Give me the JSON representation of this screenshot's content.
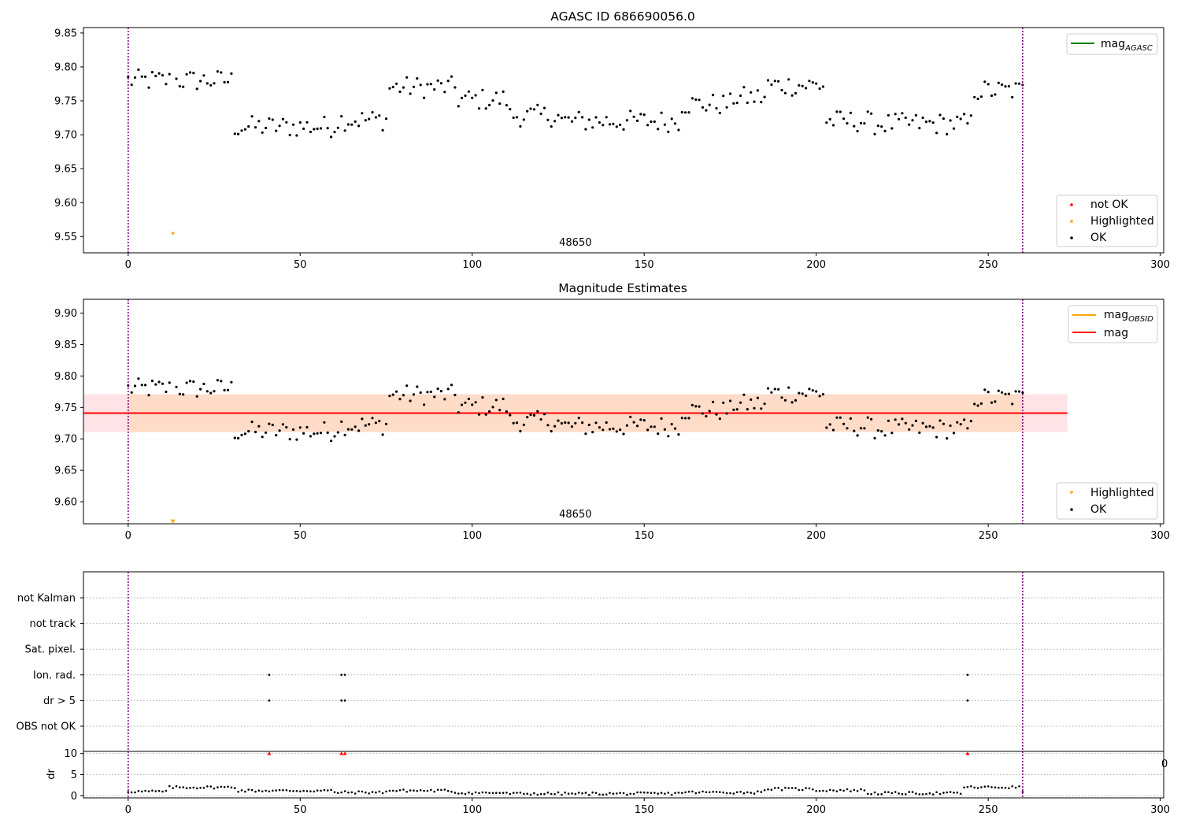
{
  "chart_data": [
    {
      "type": "scatter",
      "title": "AGASC ID 686690056.0",
      "xlim": [
        -13,
        301
      ],
      "ylim": [
        9.526,
        9.858
      ],
      "xticks": [
        0,
        50,
        100,
        150,
        200,
        250,
        300
      ],
      "yticks": [
        9.55,
        9.6,
        9.65,
        9.7,
        9.75,
        9.8,
        9.85
      ],
      "vlines": [
        0,
        260
      ],
      "annotation": {
        "x": 130,
        "text": "48650"
      },
      "series": [
        {
          "name": "not OK",
          "color": "#ff0000",
          "points": []
        },
        {
          "name": "Highlighted",
          "color": "#ffa500",
          "points": [
            [
              13,
              9.555
            ]
          ]
        },
        {
          "name": "OK",
          "color": "#000000",
          "points": "ok_points"
        }
      ],
      "lines": [
        {
          "name": "mag",
          "sub": "AGASC",
          "color": "#008000"
        }
      ],
      "legend_top": "top-right",
      "legend_bottom": "bottom-right"
    },
    {
      "type": "scatter",
      "title": "Magnitude Estimates",
      "xlim": [
        -13,
        301
      ],
      "ylim": [
        9.565,
        9.922
      ],
      "xticks": [
        0,
        50,
        100,
        150,
        200,
        250,
        300
      ],
      "yticks": [
        9.6,
        9.65,
        9.7,
        9.75,
        9.8,
        9.85,
        9.9
      ],
      "vlines": [
        0,
        260
      ],
      "annotation": {
        "x": 130,
        "text": "48650"
      },
      "mean_mag": 9.741,
      "band_inner": {
        "x0": 0,
        "x1": 260,
        "y0": 9.711,
        "y1": 9.771,
        "color": "#ffdcc8"
      },
      "band_outer": {
        "x0": -13,
        "x1": 273,
        "y0": 9.711,
        "y1": 9.771,
        "color": "#ffe3e6"
      },
      "series": [
        {
          "name": "Highlighted",
          "color": "#ffa500",
          "points": [
            [
              13,
              9.568
            ]
          ]
        },
        {
          "name": "OK",
          "color": "#000000",
          "points": "ok_points"
        }
      ],
      "lines": [
        {
          "name": "mag",
          "sub": "OBSID",
          "color": "#ffa500"
        },
        {
          "name": "mag",
          "sub": "",
          "color": "#ff0000"
        }
      ],
      "legend_top": "top-right",
      "legend_bottom": "bottom-right"
    },
    {
      "type": "scatter",
      "categories": [
        "not Kalman",
        "not track",
        "Sat. pixel.",
        "Ion. rad.",
        "dr > 5",
        "OBS not OK"
      ],
      "flags": {
        "Ion. rad.": [
          41,
          62,
          63,
          244
        ],
        "dr > 5": [
          41,
          62,
          63,
          244
        ]
      },
      "xlim": [
        -13,
        301
      ],
      "vlines": [
        0,
        260
      ]
    },
    {
      "type": "scatter",
      "ylabel": "dr",
      "ylim": [
        -0.5,
        10.5
      ],
      "yticks": [
        0,
        5,
        10
      ],
      "xlim": [
        -13,
        301
      ],
      "xticks": [
        0,
        50,
        100,
        150,
        200,
        250,
        300
      ],
      "vlines": [
        0,
        260
      ],
      "red_markers": [
        41,
        62,
        63,
        244
      ],
      "right_edge_text": "0"
    }
  ]
}
